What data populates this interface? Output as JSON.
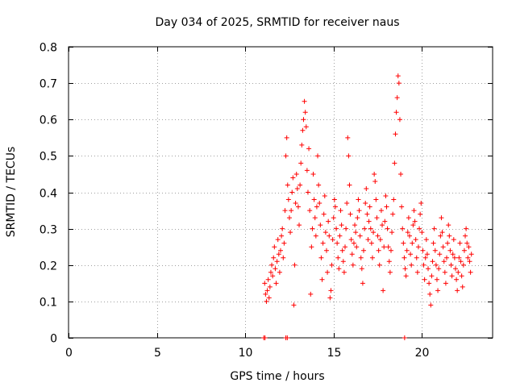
{
  "chart_data": {
    "type": "scatter",
    "title": "Day 034 of 2025, SRMTID for receiver naus",
    "xlabel": "GPS time / hours",
    "ylabel": "SRMTID / TECUs",
    "xlim": [
      0,
      24
    ],
    "ylim": [
      0,
      0.8
    ],
    "x_ticks": [
      0,
      5,
      10,
      15,
      20
    ],
    "x_tick_labels": [
      "0",
      "5",
      "10",
      "15",
      "20"
    ],
    "y_ticks": [
      0,
      0.1,
      0.2,
      0.3,
      0.4,
      0.5,
      0.6,
      0.7,
      0.8
    ],
    "y_tick_labels": [
      "0",
      "0.1",
      "0.2",
      "0.3",
      "0.4",
      "0.5",
      "0.6",
      "0.7",
      "0.8"
    ],
    "grid": true,
    "marker": "+",
    "color": "#ff0000",
    "series": [
      {
        "name": "SRMTID",
        "points": [
          [
            11.1,
            0.15
          ],
          [
            11.15,
            0.12
          ],
          [
            11.2,
            0.1
          ],
          [
            11.25,
            0.13
          ],
          [
            11.3,
            0.16
          ],
          [
            11.35,
            0.11
          ],
          [
            11.4,
            0.14
          ],
          [
            11.45,
            0.18
          ],
          [
            11.5,
            0.2
          ],
          [
            11.55,
            0.17
          ],
          [
            11.6,
            0.22
          ],
          [
            11.65,
            0.25
          ],
          [
            11.7,
            0.19
          ],
          [
            11.75,
            0.15
          ],
          [
            11.8,
            0.21
          ],
          [
            11.85,
            0.27
          ],
          [
            11.9,
            0.23
          ],
          [
            11.95,
            0.18
          ],
          [
            12.0,
            0.24
          ],
          [
            12.05,
            0.28
          ],
          [
            12.1,
            0.3
          ],
          [
            12.15,
            0.22
          ],
          [
            12.2,
            0.26
          ],
          [
            12.25,
            0.35
          ],
          [
            12.3,
            0.5
          ],
          [
            12.35,
            0.55
          ],
          [
            12.4,
            0.42
          ],
          [
            12.45,
            0.38
          ],
          [
            12.5,
            0.33
          ],
          [
            12.55,
            0.29
          ],
          [
            12.6,
            0.35
          ],
          [
            12.65,
            0.4
          ],
          [
            12.7,
            0.44
          ],
          [
            12.75,
            0.09
          ],
          [
            12.8,
            0.2
          ],
          [
            12.85,
            0.37
          ],
          [
            12.9,
            0.45
          ],
          [
            12.95,
            0.41
          ],
          [
            13.0,
            0.36
          ],
          [
            13.05,
            0.31
          ],
          [
            13.1,
            0.42
          ],
          [
            13.15,
            0.48
          ],
          [
            13.2,
            0.53
          ],
          [
            13.25,
            0.57
          ],
          [
            13.3,
            0.6
          ],
          [
            13.35,
            0.65
          ],
          [
            13.4,
            0.62
          ],
          [
            13.45,
            0.58
          ],
          [
            13.5,
            0.46
          ],
          [
            13.55,
            0.4
          ],
          [
            13.6,
            0.52
          ],
          [
            13.65,
            0.35
          ],
          [
            13.7,
            0.12
          ],
          [
            13.75,
            0.25
          ],
          [
            13.8,
            0.3
          ],
          [
            13.85,
            0.45
          ],
          [
            13.9,
            0.38
          ],
          [
            13.95,
            0.33
          ],
          [
            14.0,
            0.28
          ],
          [
            14.05,
            0.36
          ],
          [
            14.1,
            0.5
          ],
          [
            14.15,
            0.42
          ],
          [
            14.2,
            0.37
          ],
          [
            14.25,
            0.31
          ],
          [
            14.3,
            0.22
          ],
          [
            14.35,
            0.16
          ],
          [
            14.4,
            0.26
          ],
          [
            14.45,
            0.34
          ],
          [
            14.5,
            0.39
          ],
          [
            14.55,
            0.29
          ],
          [
            14.6,
            0.24
          ],
          [
            14.65,
            0.18
          ],
          [
            14.7,
            0.32
          ],
          [
            14.75,
            0.28
          ],
          [
            14.8,
            0.11
          ],
          [
            14.85,
            0.13
          ],
          [
            14.9,
            0.2
          ],
          [
            14.95,
            0.27
          ],
          [
            15.0,
            0.33
          ],
          [
            15.05,
            0.38
          ],
          [
            15.1,
            0.36
          ],
          [
            15.15,
            0.3
          ],
          [
            15.2,
            0.26
          ],
          [
            15.25,
            0.22
          ],
          [
            15.3,
            0.19
          ],
          [
            15.35,
            0.28
          ],
          [
            15.4,
            0.35
          ],
          [
            15.45,
            0.31
          ],
          [
            15.5,
            0.24
          ],
          [
            15.55,
            0.21
          ],
          [
            15.6,
            0.18
          ],
          [
            15.65,
            0.25
          ],
          [
            15.7,
            0.3
          ],
          [
            15.75,
            0.37
          ],
          [
            15.8,
            0.55
          ],
          [
            15.85,
            0.5
          ],
          [
            15.9,
            0.42
          ],
          [
            15.95,
            0.34
          ],
          [
            16.0,
            0.27
          ],
          [
            16.05,
            0.23
          ],
          [
            16.1,
            0.2
          ],
          [
            16.15,
            0.26
          ],
          [
            16.2,
            0.31
          ],
          [
            16.25,
            0.29
          ],
          [
            16.3,
            0.25
          ],
          [
            16.35,
            0.33
          ],
          [
            16.4,
            0.38
          ],
          [
            16.45,
            0.35
          ],
          [
            16.5,
            0.28
          ],
          [
            16.55,
            0.22
          ],
          [
            16.6,
            0.19
          ],
          [
            16.65,
            0.15
          ],
          [
            16.7,
            0.24
          ],
          [
            16.75,
            0.3
          ],
          [
            16.8,
            0.37
          ],
          [
            16.85,
            0.41
          ],
          [
            16.9,
            0.34
          ],
          [
            16.95,
            0.27
          ],
          [
            17.0,
            0.32
          ],
          [
            17.05,
            0.36
          ],
          [
            17.1,
            0.3
          ],
          [
            17.15,
            0.26
          ],
          [
            17.2,
            0.22
          ],
          [
            17.25,
            0.29
          ],
          [
            17.3,
            0.45
          ],
          [
            17.35,
            0.43
          ],
          [
            17.4,
            0.38
          ],
          [
            17.45,
            0.33
          ],
          [
            17.5,
            0.28
          ],
          [
            17.55,
            0.24
          ],
          [
            17.6,
            0.2
          ],
          [
            17.65,
            0.27
          ],
          [
            17.7,
            0.35
          ],
          [
            17.75,
            0.31
          ],
          [
            17.8,
            0.13
          ],
          [
            17.85,
            0.25
          ],
          [
            17.9,
            0.32
          ],
          [
            17.95,
            0.39
          ],
          [
            18.0,
            0.36
          ],
          [
            18.05,
            0.3
          ],
          [
            18.1,
            0.25
          ],
          [
            18.15,
            0.21
          ],
          [
            18.2,
            0.18
          ],
          [
            18.25,
            0.24
          ],
          [
            18.3,
            0.29
          ],
          [
            18.35,
            0.34
          ],
          [
            18.4,
            0.38
          ],
          [
            18.45,
            0.48
          ],
          [
            18.5,
            0.56
          ],
          [
            18.55,
            0.62
          ],
          [
            18.6,
            0.66
          ],
          [
            18.65,
            0.72
          ],
          [
            18.7,
            0.7
          ],
          [
            18.75,
            0.6
          ],
          [
            18.8,
            0.45
          ],
          [
            18.85,
            0.36
          ],
          [
            18.9,
            0.3
          ],
          [
            18.95,
            0.26
          ],
          [
            19.0,
            0.22
          ],
          [
            19.05,
            0.19
          ],
          [
            19.1,
            0.17
          ],
          [
            19.15,
            0.24
          ],
          [
            19.2,
            0.29
          ],
          [
            19.25,
            0.33
          ],
          [
            19.3,
            0.28
          ],
          [
            19.35,
            0.23
          ],
          [
            19.4,
            0.2
          ],
          [
            19.45,
            0.26
          ],
          [
            19.5,
            0.31
          ],
          [
            19.55,
            0.35
          ],
          [
            19.6,
            0.32
          ],
          [
            19.65,
            0.27
          ],
          [
            19.7,
            0.22
          ],
          [
            19.75,
            0.18
          ],
          [
            19.8,
            0.25
          ],
          [
            19.85,
            0.3
          ],
          [
            19.9,
            0.34
          ],
          [
            19.95,
            0.37
          ],
          [
            20.0,
            0.29
          ],
          [
            20.05,
            0.24
          ],
          [
            20.1,
            0.2
          ],
          [
            20.15,
            0.16
          ],
          [
            20.2,
            0.22
          ],
          [
            20.25,
            0.27
          ],
          [
            20.3,
            0.23
          ],
          [
            20.35,
            0.19
          ],
          [
            20.4,
            0.15
          ],
          [
            20.45,
            0.12
          ],
          [
            20.5,
            0.09
          ],
          [
            20.55,
            0.17
          ],
          [
            20.6,
            0.21
          ],
          [
            20.65,
            0.26
          ],
          [
            20.7,
            0.3
          ],
          [
            20.75,
            0.24
          ],
          [
            20.8,
            0.2
          ],
          [
            20.85,
            0.16
          ],
          [
            20.9,
            0.13
          ],
          [
            20.95,
            0.19
          ],
          [
            21.0,
            0.23
          ],
          [
            21.05,
            0.28
          ],
          [
            21.1,
            0.33
          ],
          [
            21.15,
            0.29
          ],
          [
            21.2,
            0.25
          ],
          [
            21.25,
            0.21
          ],
          [
            21.3,
            0.18
          ],
          [
            21.35,
            0.15
          ],
          [
            21.4,
            0.22
          ],
          [
            21.45,
            0.26
          ],
          [
            21.5,
            0.31
          ],
          [
            21.55,
            0.28
          ],
          [
            21.6,
            0.24
          ],
          [
            21.65,
            0.2
          ],
          [
            21.7,
            0.17
          ],
          [
            21.75,
            0.23
          ],
          [
            21.8,
            0.27
          ],
          [
            21.85,
            0.22
          ],
          [
            21.9,
            0.19
          ],
          [
            21.95,
            0.16
          ],
          [
            22.0,
            0.13
          ],
          [
            22.05,
            0.18
          ],
          [
            22.1,
            0.22
          ],
          [
            22.15,
            0.26
          ],
          [
            22.2,
            0.21
          ],
          [
            22.25,
            0.17
          ],
          [
            22.3,
            0.14
          ],
          [
            22.35,
            0.2
          ],
          [
            22.4,
            0.24
          ],
          [
            22.45,
            0.28
          ],
          [
            22.5,
            0.3
          ],
          [
            22.55,
            0.26
          ],
          [
            22.6,
            0.22
          ],
          [
            22.65,
            0.25
          ],
          [
            22.7,
            0.21
          ],
          [
            22.75,
            0.18
          ],
          [
            22.8,
            0.23
          ],
          [
            11.05,
            0.0
          ],
          [
            11.12,
            0.0
          ],
          [
            12.3,
            0.0
          ],
          [
            12.38,
            0.0
          ],
          [
            19.02,
            0.0
          ]
        ]
      }
    ]
  }
}
